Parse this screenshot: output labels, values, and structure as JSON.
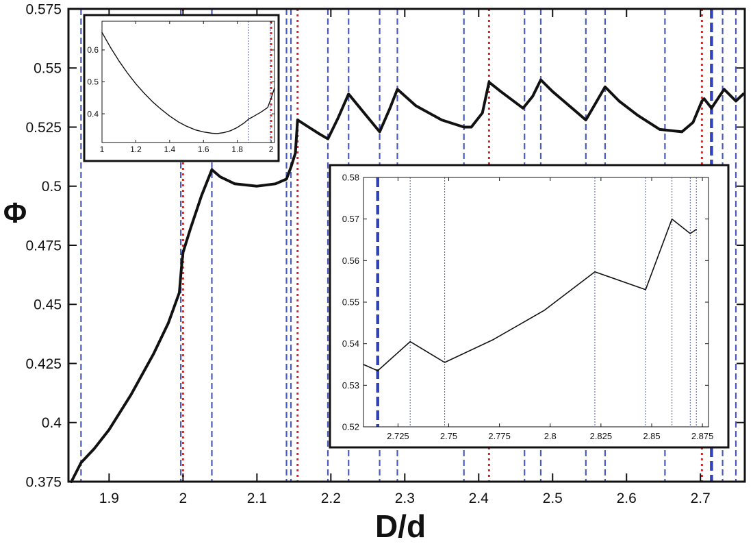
{
  "chart_data": [
    {
      "type": "line",
      "title": "",
      "xlabel": "D/d",
      "ylabel": "Φ",
      "xlim": [
        1.845,
        2.76
      ],
      "ylim": [
        0.375,
        0.575
      ],
      "grid": false,
      "x_ticks": [
        {
          "value": 1.9,
          "label": "1.9"
        },
        {
          "value": 2.0,
          "label": "2"
        },
        {
          "value": 2.1,
          "label": "2.1"
        },
        {
          "value": 2.2,
          "label": "2.2"
        },
        {
          "value": 2.3,
          "label": "2.3"
        },
        {
          "value": 2.4,
          "label": "2.4"
        },
        {
          "value": 2.5,
          "label": "2.5"
        },
        {
          "value": 2.6,
          "label": "2.6"
        },
        {
          "value": 2.7,
          "label": "2.7"
        }
      ],
      "y_ticks": [
        {
          "value": 0.375,
          "label": "0.375"
        },
        {
          "value": 0.4,
          "label": "0.4"
        },
        {
          "value": 0.425,
          "label": "0.425"
        },
        {
          "value": 0.45,
          "label": "0.45"
        },
        {
          "value": 0.475,
          "label": "0.475"
        },
        {
          "value": 0.5,
          "label": "0.5"
        },
        {
          "value": 0.525,
          "label": "0.525"
        },
        {
          "value": 0.55,
          "label": "0.55"
        },
        {
          "value": 0.575,
          "label": "0.575"
        }
      ],
      "series": [
        {
          "color": "#111111",
          "x": [
            1.849,
            1.862,
            1.88,
            1.9,
            1.93,
            1.96,
            1.98,
            1.995,
            1.998,
            2.0,
            2.01,
            2.025,
            2.039,
            2.05,
            2.07,
            2.1,
            2.125,
            2.14,
            2.146,
            2.152,
            2.155,
            2.17,
            2.185,
            2.196,
            2.21,
            2.224,
            2.245,
            2.266,
            2.28,
            2.29,
            2.315,
            2.35,
            2.38,
            2.39,
            2.405,
            2.414,
            2.43,
            2.46,
            2.473,
            2.484,
            2.5,
            2.515,
            2.53,
            2.545,
            2.558,
            2.571,
            2.59,
            2.615,
            2.645,
            2.675,
            2.69,
            2.702,
            2.705,
            2.715,
            2.732,
            2.748,
            2.758
          ],
          "y": [
            0.375,
            0.383,
            0.389,
            0.397,
            0.412,
            0.429,
            0.442,
            0.455,
            0.466,
            0.472,
            0.482,
            0.496,
            0.507,
            0.504,
            0.501,
            0.5,
            0.501,
            0.503,
            0.508,
            0.514,
            0.528,
            0.525,
            0.522,
            0.52,
            0.529,
            0.539,
            0.531,
            0.523,
            0.533,
            0.541,
            0.534,
            0.528,
            0.525,
            0.525,
            0.531,
            0.544,
            0.54,
            0.533,
            0.538,
            0.545,
            0.54,
            0.536,
            0.532,
            0.528,
            0.535,
            0.542,
            0.536,
            0.53,
            0.524,
            0.523,
            0.527,
            0.536,
            0.537,
            0.533,
            0.541,
            0.536,
            0.539
          ]
        }
      ],
      "vlines": [
        {
          "x": 1.862,
          "style": "blue-dashed"
        },
        {
          "x": 1.997,
          "style": "blue-dashed"
        },
        {
          "x": 2.0,
          "style": "red-dotted"
        },
        {
          "x": 2.039,
          "style": "blue-dashed"
        },
        {
          "x": 2.14,
          "style": "blue-dashed"
        },
        {
          "x": 2.146,
          "style": "blue-dashed"
        },
        {
          "x": 2.155,
          "style": "red-dotted"
        },
        {
          "x": 2.196,
          "style": "blue-dashed"
        },
        {
          "x": 2.224,
          "style": "blue-dashed"
        },
        {
          "x": 2.266,
          "style": "blue-dashed"
        },
        {
          "x": 2.29,
          "style": "blue-dashed"
        },
        {
          "x": 2.38,
          "style": "blue-dashed"
        },
        {
          "x": 2.414,
          "style": "red-dotted"
        },
        {
          "x": 2.462,
          "style": "blue-dashed"
        },
        {
          "x": 2.484,
          "style": "blue-dashed"
        },
        {
          "x": 2.545,
          "style": "blue-dashed"
        },
        {
          "x": 2.571,
          "style": "blue-dashed"
        },
        {
          "x": 2.652,
          "style": "blue-dashed"
        },
        {
          "x": 2.702,
          "style": "red-dotted"
        },
        {
          "x": 2.715,
          "style": "blue-thick-dashed"
        },
        {
          "x": 2.73,
          "style": "blue-dashed"
        },
        {
          "x": 2.748,
          "style": "blue-dashed"
        }
      ]
    },
    {
      "type": "line",
      "title": "",
      "xlabel": "",
      "ylabel": "",
      "xlim": [
        1.0,
        2.02
      ],
      "ylim": [
        0.31,
        0.69
      ],
      "grid": false,
      "x_ticks": [
        {
          "value": 1.0,
          "label": "1"
        },
        {
          "value": 1.2,
          "label": "1.2"
        },
        {
          "value": 1.4,
          "label": "1.4"
        },
        {
          "value": 1.6,
          "label": "1.6"
        },
        {
          "value": 1.8,
          "label": "1.8"
        },
        {
          "value": 2.0,
          "label": "2"
        }
      ],
      "y_ticks": [
        {
          "value": 0.4,
          "label": "0.4"
        },
        {
          "value": 0.5,
          "label": "0.5"
        },
        {
          "value": 0.6,
          "label": "0.6"
        }
      ],
      "series": [
        {
          "color": "#111111",
          "x": [
            1.0,
            1.05,
            1.1,
            1.15,
            1.2,
            1.25,
            1.3,
            1.35,
            1.4,
            1.45,
            1.5,
            1.55,
            1.6,
            1.65,
            1.68,
            1.72,
            1.76,
            1.8,
            1.84,
            1.866,
            1.9,
            1.94,
            1.98,
            2.0,
            2.02
          ],
          "y": [
            0.655,
            0.608,
            0.566,
            0.528,
            0.494,
            0.464,
            0.437,
            0.414,
            0.393,
            0.375,
            0.361,
            0.35,
            0.343,
            0.339,
            0.338,
            0.341,
            0.347,
            0.357,
            0.371,
            0.383,
            0.393,
            0.405,
            0.42,
            0.449,
            0.481
          ]
        }
      ],
      "vlines": [
        {
          "x": 1.866,
          "style": "blue-dotted"
        },
        {
          "x": 1.995,
          "style": "blue-dotted"
        },
        {
          "x": 2.0,
          "style": "red-dotted"
        }
      ]
    },
    {
      "type": "line",
      "title": "",
      "xlabel": "",
      "ylabel": "",
      "xlim": [
        2.708,
        2.878
      ],
      "ylim": [
        0.52,
        0.58
      ],
      "grid": false,
      "x_ticks": [
        {
          "value": 2.725,
          "label": "2.725"
        },
        {
          "value": 2.75,
          "label": "2.75"
        },
        {
          "value": 2.775,
          "label": "2.775"
        },
        {
          "value": 2.8,
          "label": "2.8"
        },
        {
          "value": 2.825,
          "label": "2.825"
        },
        {
          "value": 2.85,
          "label": "2.85"
        },
        {
          "value": 2.875,
          "label": "2.875"
        }
      ],
      "y_ticks": [
        {
          "value": 0.52,
          "label": "0.52"
        },
        {
          "value": 0.53,
          "label": "0.53"
        },
        {
          "value": 0.54,
          "label": "0.54"
        },
        {
          "value": 0.55,
          "label": "0.55"
        },
        {
          "value": 0.56,
          "label": "0.56"
        },
        {
          "value": 0.57,
          "label": "0.57"
        },
        {
          "value": 0.58,
          "label": "0.58"
        }
      ],
      "series": [
        {
          "color": "#111111",
          "x": [
            2.708,
            2.715,
            2.731,
            2.748,
            2.772,
            2.797,
            2.822,
            2.847,
            2.86,
            2.869,
            2.872
          ],
          "y": [
            0.535,
            0.5335,
            0.5405,
            0.5355,
            0.541,
            0.548,
            0.5573,
            0.553,
            0.57,
            0.5665,
            0.5675
          ]
        }
      ],
      "vlines": [
        {
          "x": 2.715,
          "style": "blue-thick-dashed"
        },
        {
          "x": 2.731,
          "style": "blue-dotted"
        },
        {
          "x": 2.748,
          "style": "blue-dotted"
        },
        {
          "x": 2.822,
          "style": "blue-dotted"
        },
        {
          "x": 2.847,
          "style": "blue-dotted"
        },
        {
          "x": 2.86,
          "style": "blue-dotted"
        },
        {
          "x": 2.869,
          "style": "blue-dotted"
        },
        {
          "x": 2.872,
          "style": "blue-dotted"
        }
      ]
    }
  ]
}
